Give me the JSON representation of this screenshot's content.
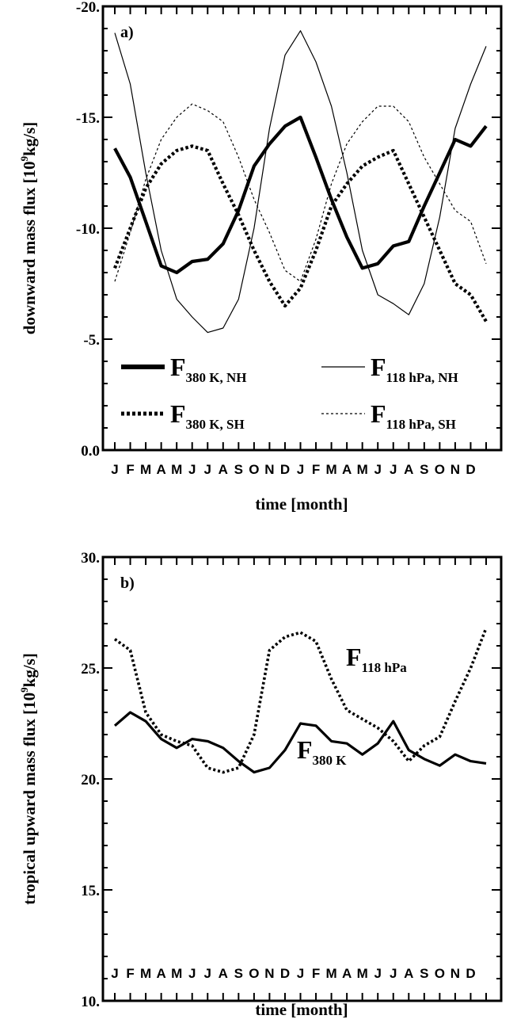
{
  "chart_data": [
    {
      "type": "line",
      "panel_label": "a)",
      "xlabel": "time [month]",
      "ylabel_prefix": "downward mass flux [10",
      "ylabel_exp": "9",
      "ylabel_suffix": "kg/s]",
      "ylim": [
        0,
        -20
      ],
      "y_ticks": [
        {
          "value": 0,
          "label": "0.0"
        },
        {
          "value": -5,
          "label": "-5."
        },
        {
          "value": -10,
          "label": "-10."
        },
        {
          "value": -15,
          "label": "-15."
        },
        {
          "value": -20,
          "label": "-20."
        }
      ],
      "month_labels": [
        "J",
        "F",
        "M",
        "A",
        "M",
        "J",
        "J",
        "A",
        "S",
        "O",
        "N",
        "D",
        "J",
        "F",
        "M",
        "A",
        "M",
        "J",
        "J",
        "A",
        "S",
        "O",
        "N",
        "D"
      ],
      "series": [
        {
          "id": "f380-nh",
          "name": "F",
          "sub": "380 K, NH",
          "style": "thick-solid",
          "values": [
            -13.6,
            -12.3,
            -10.3,
            -8.3,
            -8.0,
            -8.5,
            -8.6,
            -9.3,
            -10.8,
            -12.8,
            -13.8,
            -14.6,
            -15.0,
            -13.2,
            -11.3,
            -9.6,
            -8.2,
            -8.4,
            -9.2,
            -9.4,
            -11.0,
            -12.5,
            -14.0,
            -13.7,
            -14.6
          ]
        },
        {
          "id": "f380-sh",
          "name": "F",
          "sub": "380 K, SH",
          "style": "thick-dotted",
          "values": [
            -8.2,
            -10.0,
            -11.8,
            -12.9,
            -13.5,
            -13.7,
            -13.5,
            -12.0,
            -10.6,
            -9.0,
            -7.6,
            -6.5,
            -7.3,
            -9.0,
            -11.0,
            -12.0,
            -12.8,
            -13.2,
            -13.5,
            -12.0,
            -10.5,
            -9.0,
            -7.5,
            -7.0,
            -5.8
          ]
        },
        {
          "id": "f118-nh",
          "name": "F",
          "sub": "118 hPa, NH",
          "style": "thin-solid",
          "values": [
            -18.8,
            -16.5,
            -12.5,
            -9.0,
            -6.8,
            -6.0,
            -5.3,
            -5.5,
            -6.8,
            -10.0,
            -14.5,
            -17.8,
            -18.9,
            -17.5,
            -15.5,
            -12.5,
            -9.0,
            -7.0,
            -6.6,
            -6.1,
            -7.5,
            -10.5,
            -14.5,
            -16.5,
            -18.2
          ]
        },
        {
          "id": "f118-sh",
          "name": "F",
          "sub": "118 hPa, SH",
          "style": "thin-dashed",
          "values": [
            -7.6,
            -9.8,
            -12.2,
            -14.0,
            -15.0,
            -15.6,
            -15.3,
            -14.8,
            -13.2,
            -11.3,
            -9.8,
            -8.1,
            -7.6,
            -9.5,
            -12.0,
            -13.8,
            -14.8,
            -15.5,
            -15.5,
            -14.8,
            -13.2,
            -12.0,
            -10.8,
            -10.3,
            -8.4
          ]
        }
      ],
      "legend_placement": "bottom"
    },
    {
      "type": "line",
      "panel_label": "b)",
      "xlabel": "time [month]",
      "ylabel_prefix": "tropical upward mass flux [10",
      "ylabel_exp": "9",
      "ylabel_suffix": "kg/s]",
      "ylim": [
        10,
        30
      ],
      "y_ticks": [
        {
          "value": 10,
          "label": "10."
        },
        {
          "value": 15,
          "label": "15."
        },
        {
          "value": 20,
          "label": "20."
        },
        {
          "value": 25,
          "label": "25."
        },
        {
          "value": 30,
          "label": "30."
        }
      ],
      "month_labels": [
        "J",
        "F",
        "M",
        "A",
        "M",
        "J",
        "J",
        "A",
        "S",
        "O",
        "N",
        "D",
        "J",
        "F",
        "M",
        "A",
        "M",
        "J",
        "J",
        "A",
        "S",
        "O",
        "N",
        "D"
      ],
      "series": [
        {
          "id": "f380",
          "name": "F",
          "sub": "380 K",
          "style": "solid",
          "values": [
            22.4,
            23.0,
            22.6,
            21.8,
            21.4,
            21.8,
            21.7,
            21.4,
            20.8,
            20.3,
            20.5,
            21.3,
            22.5,
            22.4,
            21.7,
            21.6,
            21.1,
            21.6,
            22.6,
            21.3,
            20.9,
            20.6,
            21.1,
            20.8,
            20.7
          ]
        },
        {
          "id": "f118",
          "name": "F",
          "sub": "118 hPa",
          "style": "dotted",
          "values": [
            26.3,
            25.8,
            23.0,
            22.0,
            21.7,
            21.5,
            20.5,
            20.3,
            20.5,
            22.0,
            25.8,
            26.4,
            26.6,
            26.2,
            24.5,
            23.1,
            22.7,
            22.3,
            21.7,
            20.8,
            21.5,
            21.9,
            23.5,
            25.0,
            26.8
          ]
        }
      ]
    }
  ]
}
